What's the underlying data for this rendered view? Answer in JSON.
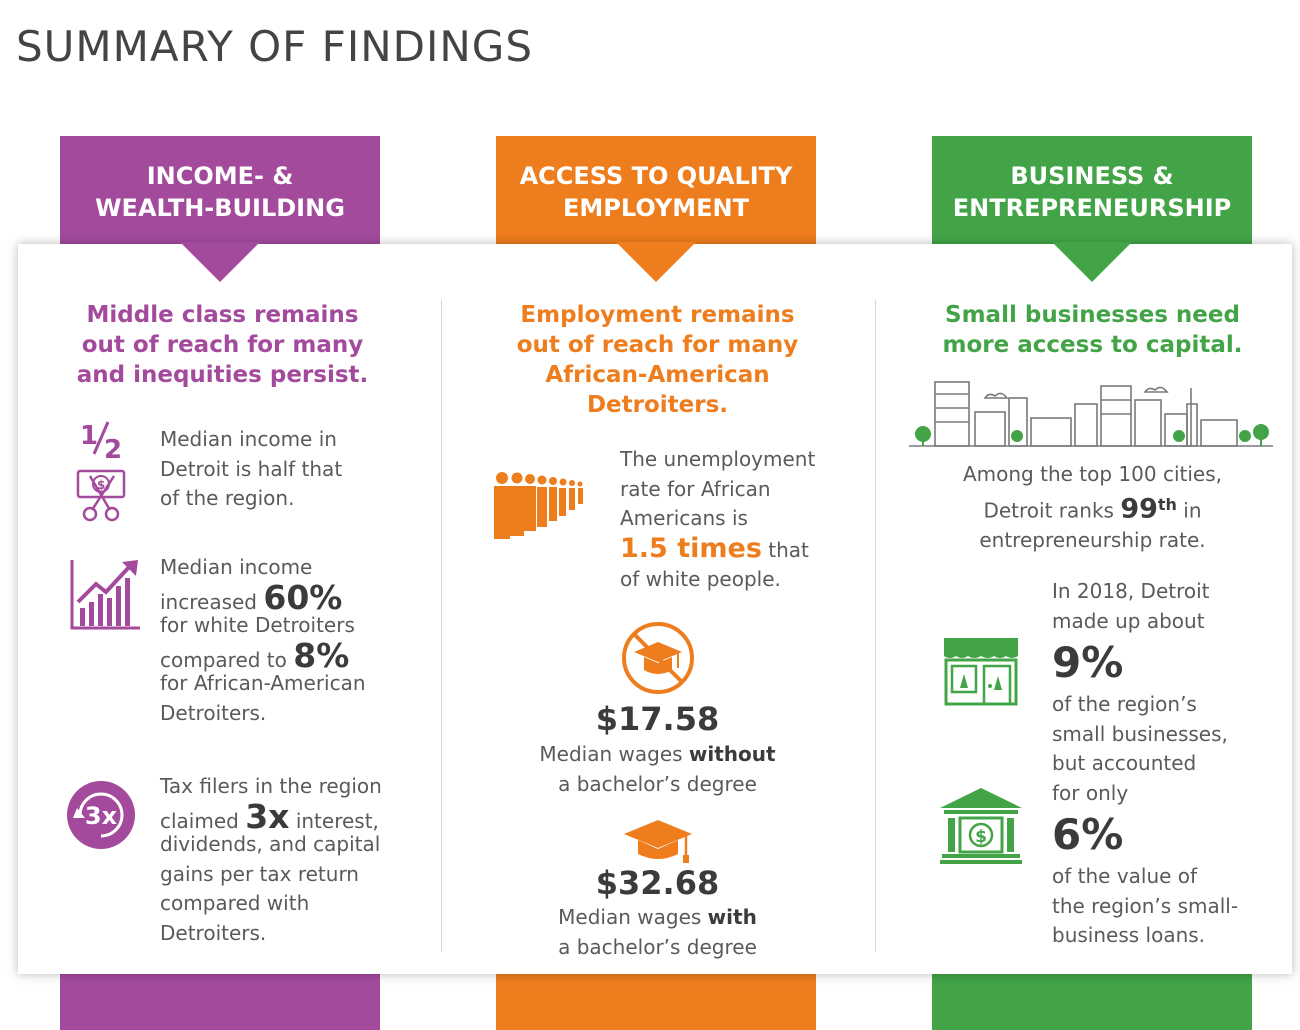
{
  "title": "SUMMARY OF FINDINGS",
  "colors": {
    "purple": "#a34a9d",
    "orange": "#ee7d1e",
    "green": "#42a447",
    "text": "#5a5a5a"
  },
  "columns": [
    {
      "tab_line1": "INCOME- &",
      "tab_line2": "WEALTH-BUILDING",
      "headline_l1": "Middle class remains",
      "headline_l2": "out of reach for many",
      "headline_l3": "and inequities persist.",
      "f1_label": "1/2",
      "f1_l1": "Median income in",
      "f1_l2": "Detroit is half that",
      "f1_l3": "of the region.",
      "f2_l1": "Median income",
      "f2_a": "increased ",
      "f2_pct1": "60%",
      "f2_l3": "for white Detroiters",
      "f2_b": "compared to ",
      "f2_pct2": "8%",
      "f2_l5": "for African-American",
      "f2_l6": "Detroiters.",
      "f3_badge": "3x",
      "f3_l1": "Tax filers in the region",
      "f3_a": "claimed ",
      "f3_big": "3x",
      "f3_b": " interest,",
      "f3_l3": "dividends, and capital",
      "f3_l4": "gains per tax return",
      "f3_l5": "compared with",
      "f3_l6": "Detroiters."
    },
    {
      "tab_line1": "ACCESS TO QUALITY",
      "tab_line2": "EMPLOYMENT",
      "headline_l1": "Employment remains",
      "headline_l2": "out of reach for many",
      "headline_l3": "African-American",
      "headline_l4": "Detroiters.",
      "f1_l1": "The unemployment",
      "f1_l2": "rate for African",
      "f1_l3": "Americans is",
      "f1_big": "1.5 times",
      "f1_a": " that",
      "f1_l5": "of white people.",
      "f2_price": "$17.58",
      "f2_a": "Median wages ",
      "f2_b": "without",
      "f2_l2": "a bachelor’s degree",
      "f3_price": "$32.68",
      "f3_a": "Median wages ",
      "f3_b": "with",
      "f3_l2": "a bachelor’s degree"
    },
    {
      "tab_line1": "BUSINESS &",
      "tab_line2": "ENTREPRENEURSHIP",
      "headline_l1": "Small businesses need",
      "headline_l2": "more access to capital.",
      "f1_l1": "Among the top 100 cities,",
      "f1_a": "Detroit ranks ",
      "f1_rank": "99",
      "f1_sup": "th",
      "f1_b": " in",
      "f1_l3": "entrepreneurship rate.",
      "f2_l1": "In 2018, Detroit",
      "f2_l2": "made up about",
      "f2_pct": "9%",
      "f2_l4": "of the region’s",
      "f2_l5": "small businesses,",
      "f2_l6": "but accounted",
      "f2_l7": "for only",
      "f2_pct2": "6%",
      "f2_l9": "of the value of",
      "f2_l10": "the region’s small-",
      "f2_l11": "business loans."
    }
  ]
}
